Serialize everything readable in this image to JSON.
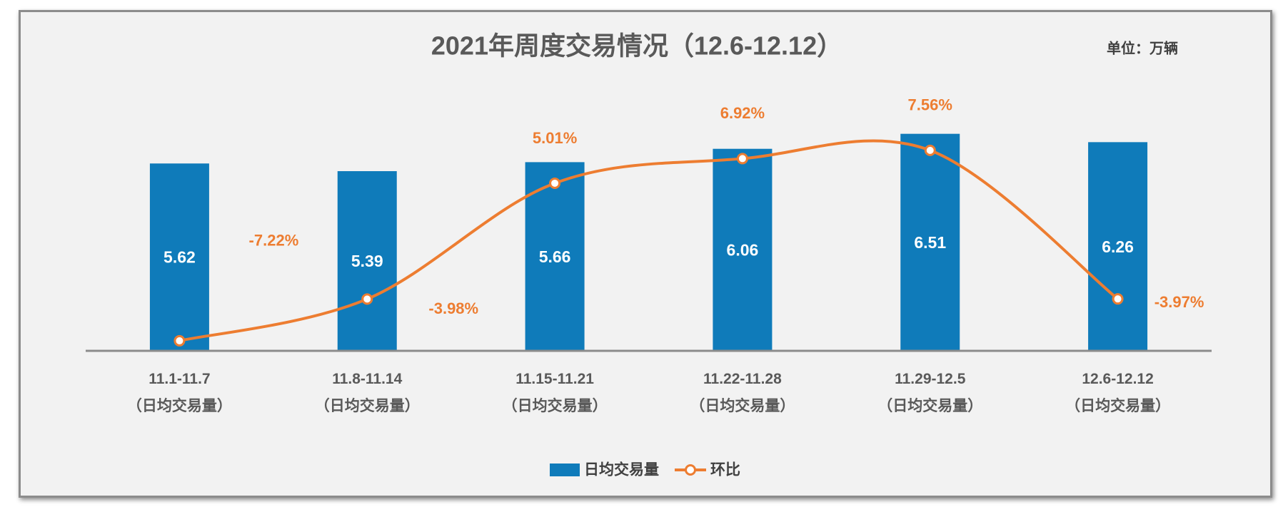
{
  "chart_data": {
    "type": "bar",
    "title": "2021年周度交易情况（12.6-12.12）",
    "unit": "单位：万辆",
    "categories": [
      "11.1-11.7\n（日均交易量）",
      "11.8-11.14\n（日均交易量）",
      "11.15-11.21\n（日均交易量）",
      "11.22-11.28\n（日均交易量）",
      "11.29-12.5\n（日均交易量）",
      "12.6-12.12\n（日均交易量）"
    ],
    "series": [
      {
        "name": "日均交易量",
        "type": "bar",
        "color": "#0f7bba",
        "values": [
          5.62,
          5.39,
          5.66,
          6.06,
          6.51,
          6.26
        ]
      },
      {
        "name": "环比",
        "type": "line",
        "axis": "y2",
        "color": "#ed7d31",
        "values": [
          -7.22,
          -3.98,
          5.01,
          6.92,
          7.56,
          -3.97
        ],
        "value_labels": [
          "-7.22%",
          "-3.98%",
          "5.01%",
          "6.92%",
          "7.56%",
          "-3.97%"
        ]
      }
    ],
    "ylim": [
      0,
      8
    ],
    "y2lim": [
      -8,
      12.7
    ],
    "grid": false,
    "legend": "bottom"
  }
}
